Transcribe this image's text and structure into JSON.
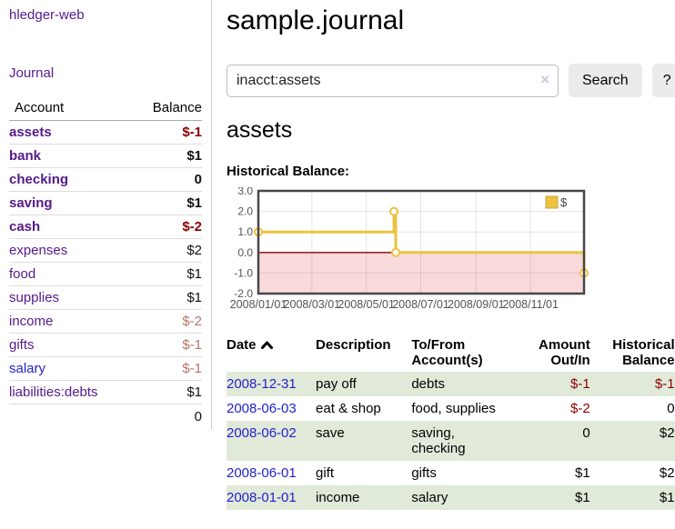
{
  "brand": "hledger-web",
  "sidebar": {
    "journal_link": "Journal",
    "accounts_table": {
      "account_header": "Account",
      "balance_header": "Balance",
      "rows": [
        {
          "name": "assets",
          "balance": "$-1",
          "level": 1,
          "bold": true,
          "balance_style": "neg-strong"
        },
        {
          "name": "bank",
          "balance": "$1",
          "level": 2,
          "bold": true,
          "balance_style": "pos"
        },
        {
          "name": "checking",
          "balance": "0",
          "level": 3,
          "bold": true,
          "balance_style": "pos"
        },
        {
          "name": "saving",
          "balance": "$1",
          "level": 3,
          "bold": true,
          "balance_style": "pos"
        },
        {
          "name": "cash",
          "balance": "$-2",
          "level": 2,
          "bold": true,
          "balance_style": "neg-strong"
        },
        {
          "name": "expenses",
          "balance": "$2",
          "level": 1,
          "bold": false,
          "balance_style": "pos"
        },
        {
          "name": "food",
          "balance": "$1",
          "level": 2,
          "bold": false,
          "balance_style": "pos"
        },
        {
          "name": "supplies",
          "balance": "$1",
          "level": 2,
          "bold": false,
          "balance_style": "pos"
        },
        {
          "name": "income",
          "balance": "$-2",
          "level": 1,
          "bold": false,
          "balance_style": "neg-soft"
        },
        {
          "name": "gifts",
          "balance": "$-1",
          "level": 2,
          "bold": false,
          "balance_style": "neg-soft"
        },
        {
          "name": "salary",
          "balance": "$-1",
          "level": 2,
          "bold": false,
          "balance_style": "neg-soft",
          "link_blue": true
        },
        {
          "name": "liabilities:debts",
          "balance": "$1",
          "level": 1,
          "bold": false,
          "balance_style": "pos"
        }
      ],
      "total": "0"
    }
  },
  "main": {
    "title": "sample.journal",
    "search": {
      "value": "inacct:assets",
      "clear_label": "×",
      "search_button": "Search",
      "help_button": "?"
    },
    "account_heading": "assets",
    "chart_heading": "Historical Balance:"
  },
  "chart_data": {
    "type": "line",
    "step": true,
    "title": "Historical Balance",
    "ylim": [
      -2.0,
      3.0
    ],
    "yticks": [
      3.0,
      2.0,
      1.0,
      0.0,
      -1.0,
      -2.0
    ],
    "xlim_days": [
      0,
      365
    ],
    "xticks": [
      {
        "label": "2008/01/01",
        "day": 0
      },
      {
        "label": "2008/03/01",
        "day": 60
      },
      {
        "label": "2008/05/01",
        "day": 121
      },
      {
        "label": "2008/07/01",
        "day": 182
      },
      {
        "label": "2008/09/01",
        "day": 244
      },
      {
        "label": "2008/11/01",
        "day": 305
      }
    ],
    "series": [
      {
        "name": "$",
        "color": "#edc240",
        "points": [
          {
            "date": "2008-01-01",
            "day": 0,
            "value": 1
          },
          {
            "date": "2008-06-01",
            "day": 152,
            "value": 2
          },
          {
            "date": "2008-06-03",
            "day": 154,
            "value": 0
          },
          {
            "date": "2008-12-31",
            "day": 365,
            "value": -1
          }
        ]
      }
    ],
    "legend": {
      "label": "$",
      "swatch_color": "#edc240",
      "position": "top-right"
    },
    "negative_region_fill": "#f9dada",
    "zero_line_color": "#8b0000",
    "grid": true
  },
  "register": {
    "headers": {
      "date": "Date",
      "description": "Description",
      "accounts": "To/From\nAccount(s)",
      "amount": "Amount\nOut/In",
      "balance": "Historical\nBalance"
    },
    "sort": {
      "column": "date",
      "direction": "ascending"
    },
    "rows": [
      {
        "date": "2008-12-31",
        "description": "pay off",
        "accounts": "debts",
        "amount": "$-1",
        "amount_negative": true,
        "balance": "$-1",
        "balance_negative": true
      },
      {
        "date": "2008-06-03",
        "description": "eat & shop",
        "accounts": "food, supplies",
        "amount": "$-2",
        "amount_negative": true,
        "balance": "0",
        "balance_negative": false
      },
      {
        "date": "2008-06-02",
        "description": "save",
        "accounts": "saving,\nchecking",
        "amount": "0",
        "amount_negative": false,
        "balance": "$2",
        "balance_negative": false
      },
      {
        "date": "2008-06-01",
        "description": "gift",
        "accounts": "gifts",
        "amount": "$1",
        "amount_negative": false,
        "balance": "$2",
        "balance_negative": false
      },
      {
        "date": "2008-01-01",
        "description": "income",
        "accounts": "salary",
        "amount": "$1",
        "amount_negative": false,
        "balance": "$1",
        "balance_negative": false
      }
    ]
  },
  "colors": {
    "link_purple": "#551a8b",
    "link_blue": "#2222cc",
    "negative_strong": "#8b0000",
    "negative_soft": "#b9736b",
    "row_stripe_green": "#e1ead9",
    "chart_line_gold": "#edc240"
  }
}
